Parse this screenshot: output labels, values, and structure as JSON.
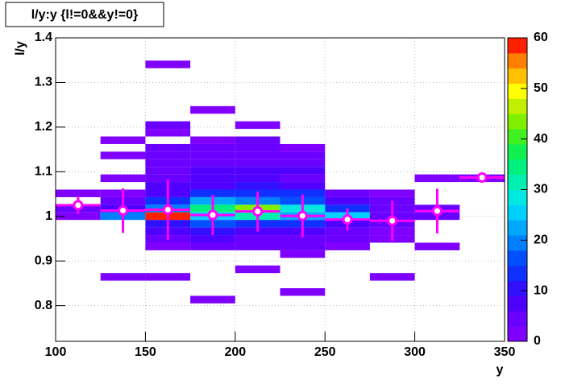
{
  "chart_data": {
    "type": "heatmap-profile",
    "title": "l/y:y {l!=0&&y!=0}",
    "x_label": "y",
    "y_label": "l/y",
    "xlim": [
      100,
      350
    ],
    "xticks": [
      100,
      150,
      200,
      250,
      300,
      350
    ],
    "ylim": [
      0.72,
      1.4
    ],
    "yticks": [
      0.8,
      0.9,
      1,
      1.1,
      1.2,
      1.3,
      1.4
    ],
    "zlim": [
      0,
      60
    ],
    "zticks": [
      0,
      10,
      20,
      30,
      40,
      50,
      60
    ],
    "grid": true,
    "xbin_width": 25,
    "ybin_width": 0.017,
    "palette": [
      "#8000ff",
      "#6a00ff",
      "#5000ff",
      "#3010ff",
      "#1030ff",
      "#0050ff",
      "#0080ff",
      "#00a8ff",
      "#00d0ff",
      "#00e8e0",
      "#00f0b0",
      "#00f080",
      "#10f050",
      "#40f020",
      "#80f000",
      "#c0f000",
      "#ffff00",
      "#ffc000",
      "#ff8000",
      "#ff2000"
    ],
    "cells": {
      "x": [
        100,
        100,
        100,
        125,
        125,
        125,
        125,
        125,
        125,
        125,
        125,
        150,
        150,
        150,
        150,
        150,
        150,
        150,
        150,
        150,
        150,
        150,
        150,
        150,
        150,
        150,
        150,
        150,
        150,
        175,
        175,
        175,
        175,
        175,
        175,
        175,
        175,
        175,
        175,
        175,
        175,
        175,
        175,
        175,
        175,
        175,
        200,
        200,
        200,
        200,
        200,
        200,
        200,
        200,
        200,
        200,
        200,
        200,
        200,
        200,
        200,
        200,
        200,
        225,
        225,
        225,
        225,
        225,
        225,
        225,
        225,
        225,
        225,
        225,
        225,
        225,
        225,
        225,
        225,
        250,
        250,
        250,
        250,
        250,
        250,
        250,
        250,
        275,
        275,
        275,
        275,
        275,
        275,
        275,
        275,
        300,
        300,
        300,
        300,
        325
      ],
      "y": [
        1.043,
        1.009,
        0.992,
        1.162,
        1.128,
        1.077,
        1.043,
        1.026,
        1.009,
        0.992,
        0.856,
        1.332,
        1.196,
        1.179,
        1.145,
        1.128,
        1.111,
        1.094,
        1.077,
        1.06,
        1.043,
        1.026,
        1.009,
        0.992,
        0.975,
        0.958,
        0.941,
        0.924,
        0.856,
        1.23,
        1.162,
        1.145,
        1.128,
        1.111,
        1.094,
        1.077,
        1.06,
        1.043,
        1.026,
        1.009,
        0.992,
        0.975,
        0.958,
        0.941,
        0.924,
        0.805,
        1.196,
        1.162,
        1.145,
        1.128,
        1.111,
        1.094,
        1.077,
        1.06,
        1.043,
        1.026,
        1.009,
        0.992,
        0.975,
        0.958,
        0.941,
        0.924,
        0.873,
        1.145,
        1.128,
        1.111,
        1.094,
        1.077,
        1.06,
        1.043,
        1.026,
        1.009,
        0.992,
        0.975,
        0.958,
        0.941,
        0.924,
        0.907,
        0.822,
        1.043,
        1.026,
        1.009,
        0.992,
        0.975,
        0.958,
        0.941,
        0.924,
        1.043,
        1.026,
        1.009,
        0.992,
        0.975,
        0.958,
        0.941,
        0.856,
        1.077,
        1.009,
        0.992,
        0.924,
        1.077
      ],
      "z": [
        2,
        5,
        2,
        2,
        2,
        2,
        2,
        4,
        8,
        18,
        2,
        2,
        3,
        2,
        3,
        4,
        4,
        5,
        5,
        6,
        8,
        12,
        20,
        58,
        10,
        6,
        3,
        2,
        2,
        2,
        2,
        3,
        3,
        4,
        8,
        6,
        8,
        14,
        22,
        34,
        26,
        16,
        10,
        6,
        4,
        2,
        2,
        3,
        4,
        4,
        5,
        6,
        8,
        10,
        14,
        20,
        42,
        32,
        14,
        8,
        5,
        3,
        2,
        2,
        3,
        5,
        6,
        5,
        8,
        12,
        16,
        28,
        22,
        12,
        6,
        4,
        3,
        2,
        2,
        4,
        6,
        12,
        24,
        6,
        4,
        3,
        2,
        2,
        3,
        5,
        4,
        3,
        2,
        2,
        2,
        2,
        3,
        4,
        2,
        2
      ]
    },
    "profile": {
      "color": "#ff00ff",
      "x": [
        112.5,
        137.5,
        162.5,
        187.5,
        212.5,
        237.5,
        262.5,
        287.5,
        312.5,
        337.5
      ],
      "values": [
        1.025,
        1.013,
        1.015,
        1.003,
        1.011,
        1.001,
        0.993,
        0.99,
        1.012,
        1.087
      ],
      "errors": [
        0.02,
        0.05,
        0.068,
        0.045,
        0.045,
        0.048,
        0.025,
        0.045,
        0.05,
        0.005
      ]
    }
  }
}
